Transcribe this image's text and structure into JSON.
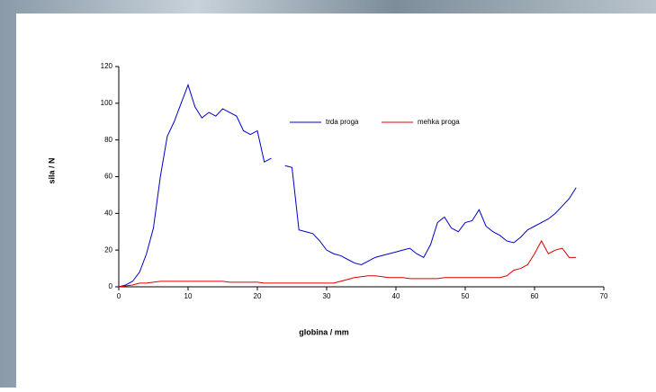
{
  "chart_data": {
    "type": "line",
    "x_label": "globina / mm",
    "y_label": "sila / N",
    "x": [
      0,
      1,
      2,
      3,
      4,
      5,
      6,
      7,
      8,
      9,
      10,
      11,
      12,
      13,
      14,
      15,
      16,
      17,
      18,
      19,
      20,
      21,
      22,
      23,
      24,
      25,
      26,
      27,
      28,
      29,
      30,
      31,
      32,
      33,
      34,
      35,
      36,
      37,
      38,
      39,
      40,
      41,
      42,
      43,
      44,
      45,
      46,
      47,
      48,
      49,
      50,
      51,
      52,
      53,
      54,
      55,
      56,
      57,
      58,
      59,
      60,
      61,
      62,
      63,
      64,
      65,
      66
    ],
    "series": [
      {
        "name": "trda proga",
        "color": "#0000cc",
        "values": [
          0,
          1,
          3,
          8,
          18,
          32,
          60,
          82,
          90,
          100,
          110,
          98,
          92,
          95,
          93,
          97,
          95,
          93,
          85,
          83,
          85,
          68,
          70,
          null,
          66,
          65,
          31,
          30,
          29,
          25,
          20,
          18,
          17,
          15,
          13,
          12,
          14,
          16,
          17,
          18,
          19,
          20,
          21,
          18,
          16,
          23,
          35,
          38,
          32,
          30,
          35,
          36,
          42,
          33,
          30,
          28,
          25,
          24,
          27,
          31,
          33,
          35,
          37,
          40,
          44,
          48,
          54
        ]
      },
      {
        "name": "mehka proga",
        "color": "#dd0000",
        "values": [
          0,
          0.5,
          1,
          2,
          2,
          2.5,
          3,
          3,
          3,
          3,
          3,
          3,
          3,
          3,
          3,
          3,
          2.5,
          2.5,
          2.5,
          2.5,
          2.5,
          2,
          2,
          2,
          2,
          2,
          2,
          2,
          2,
          2,
          2,
          2,
          3,
          4,
          5,
          5.5,
          6,
          6,
          5.5,
          5,
          5,
          5,
          4.5,
          4.5,
          4.5,
          4.5,
          4.5,
          5,
          5,
          5,
          5,
          5,
          5,
          5,
          5,
          5,
          6,
          9,
          10,
          12,
          18,
          25,
          18,
          20,
          21,
          16,
          16
        ]
      }
    ],
    "xlim": [
      0,
      70
    ],
    "xticks": [
      0,
      10,
      20,
      30,
      40,
      50,
      60,
      70
    ],
    "ylim": [
      0,
      120
    ],
    "yticks": [
      0,
      20,
      40,
      60,
      80,
      100,
      120
    ]
  }
}
